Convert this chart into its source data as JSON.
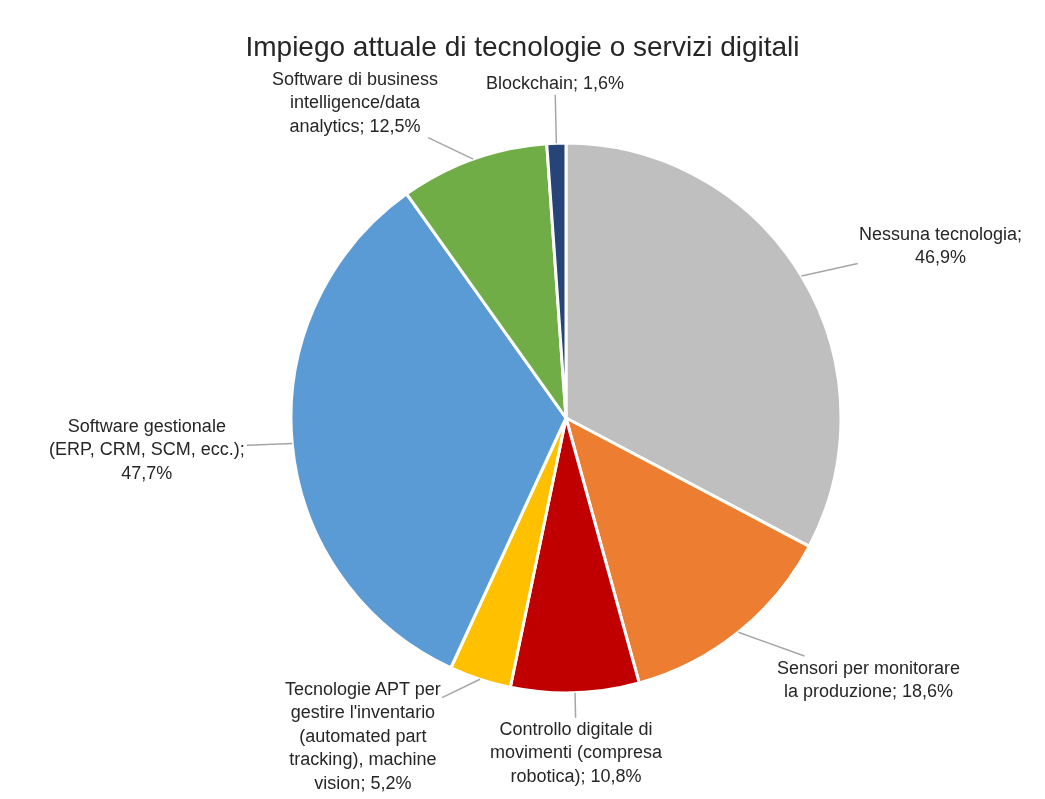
{
  "chart_data": {
    "type": "pie",
    "title": "Impiego attuale di tecnologie o servizi digitali",
    "categories": [
      "Nessuna tecnologia",
      "Sensori per monitorare la produzione",
      "Controllo digitale di movimenti (compresa robotica)",
      "Tecnologie APT per gestire l'inventario (automated part tracking), machine vision",
      "Software gestionale (ERP, CRM, SCM, ecc.)",
      "Software di business intelligence/data analytics",
      "Blockchain"
    ],
    "values": [
      46.9,
      18.6,
      10.8,
      5.2,
      47.7,
      12.5,
      1.6
    ],
    "value_labels": [
      "; 46,9%",
      "; 18,6%",
      "; 10,8%",
      "; 5,2%",
      "; 47,7%",
      "; 12,5%",
      "; 1,6%"
    ],
    "colors": [
      "#bfbfbf",
      "#ed7d31",
      "#c00000",
      "#ffc000",
      "#5b9bd5",
      "#70ad47",
      "#264478"
    ],
    "legend": false
  }
}
